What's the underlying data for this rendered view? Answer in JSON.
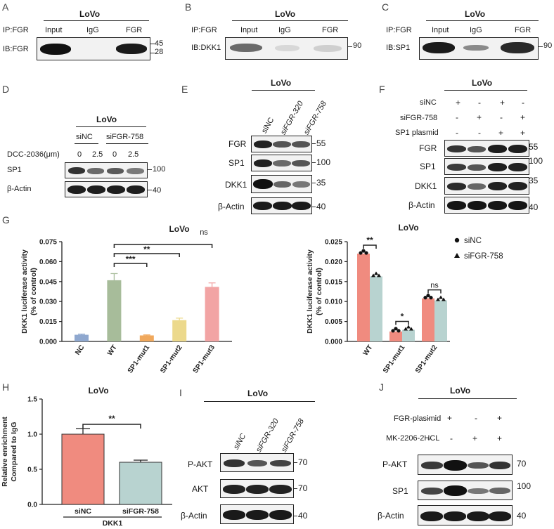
{
  "panels": {
    "A": {
      "letter": "A",
      "cell": "LoVo",
      "ip": "IP:FGR",
      "ib": "IB:FGR",
      "lanes": [
        "Input",
        "IgG",
        "FGR"
      ],
      "markers": [
        "45",
        "28"
      ]
    },
    "B": {
      "letter": "B",
      "cell": "LoVo",
      "ip": "IP:FGR",
      "ib": "IB:DKK1",
      "lanes": [
        "Input",
        "IgG",
        "FGR"
      ],
      "markers": [
        "90"
      ]
    },
    "C": {
      "letter": "C",
      "cell": "LoVo",
      "ip": "IP:FGR",
      "ib": "IB:SP1",
      "lanes": [
        "Input",
        "IgG",
        "FGR"
      ],
      "markers": [
        "90"
      ]
    },
    "D": {
      "letter": "D",
      "cell": "LoVo",
      "groups": [
        "siNC",
        "siFGR-758"
      ],
      "treatment": "DCC-2036(μm)",
      "doses": [
        "0",
        "2.5",
        "0",
        "2.5"
      ],
      "rows": [
        {
          "label": "SP1",
          "marker": "100"
        },
        {
          "label": "β-Actin",
          "marker": "40"
        }
      ]
    },
    "E": {
      "letter": "E",
      "cell": "LoVo",
      "lanes": [
        "siNC",
        "siFGR-320",
        "siFGR-758"
      ],
      "rows": [
        {
          "label": "FGR",
          "marker": "55"
        },
        {
          "label": "SP1",
          "marker": "100"
        },
        {
          "label": "DKK1",
          "marker": "35"
        },
        {
          "label": "β-Actin",
          "marker": "40"
        }
      ]
    },
    "F": {
      "letter": "F",
      "cell": "LoVo",
      "conditions": [
        {
          "label": "siNC",
          "signs": [
            "+",
            "-",
            "+",
            "-"
          ]
        },
        {
          "label": "siFGR-758",
          "signs": [
            "-",
            "+",
            "-",
            "+"
          ]
        },
        {
          "label": "SP1 plasmid",
          "signs": [
            "-",
            "-",
            "+",
            "+"
          ]
        }
      ],
      "rows": [
        {
          "label": "FGR",
          "marker": "55"
        },
        {
          "label": "SP1",
          "marker": "100"
        },
        {
          "label": "DKK1",
          "marker": "35"
        },
        {
          "label": "β-Actin",
          "marker": "40"
        }
      ]
    },
    "G": {
      "letter": "G"
    },
    "H": {
      "letter": "H",
      "sig": "**",
      "group_label": "DKK1"
    },
    "I": {
      "letter": "I",
      "cell": "LoVo",
      "lanes": [
        "siNC",
        "siFGR-320",
        "siFGR-758"
      ],
      "rows": [
        {
          "label": "P-AKT",
          "marker": "70"
        },
        {
          "label": "AKT",
          "marker": "70"
        },
        {
          "label": "β-Actin",
          "marker": "40"
        }
      ]
    },
    "J": {
      "letter": "J",
      "cell": "LoVo",
      "conditions": [
        {
          "label": "FGR-plasimid",
          "signs": [
            "-",
            "+",
            "-",
            "+"
          ]
        },
        {
          "label": "MK-2206-2HCL",
          "signs": [
            "-",
            "-",
            "+",
            "+"
          ]
        }
      ],
      "rows": [
        {
          "label": "P-AKT",
          "marker": "70"
        },
        {
          "label": "SP1",
          "marker": "100"
        },
        {
          "label": "β-Actin",
          "marker": "40"
        }
      ]
    }
  },
  "chart_data": [
    {
      "id": "G-left",
      "type": "bar",
      "title": "LoVo",
      "ylabel": "DKK1 luciferase activity\n(% of control)",
      "categories": [
        "NC",
        "WT",
        "SP1-mut1",
        "SP1-mut2",
        "SP1-mut3"
      ],
      "values": [
        0.005,
        0.046,
        0.0045,
        0.016,
        0.041
      ],
      "errors": [
        0.0005,
        0.005,
        0.0004,
        0.0015,
        0.003
      ],
      "colors": [
        "#8fa8cf",
        "#a7bc9a",
        "#f0a85c",
        "#ecd98c",
        "#f2a4a4"
      ],
      "ylim": [
        0,
        0.075
      ],
      "yticks": [
        "0.000",
        "0.015",
        "0.030",
        "0.045",
        "0.060",
        "0.075"
      ],
      "comparisons": [
        {
          "from": "WT",
          "to": "SP1-mut3",
          "label": "ns"
        },
        {
          "from": "WT",
          "to": "SP1-mut2",
          "label": "**"
        },
        {
          "from": "WT",
          "to": "SP1-mut1",
          "label": "***"
        }
      ]
    },
    {
      "id": "G-right",
      "type": "bar",
      "title": "LoVo",
      "ylabel": "DKK1 luciferase activity\n(% of control)",
      "categories": [
        "WT",
        "SP1-mut1",
        "SP1-mut2"
      ],
      "series": [
        {
          "name": "siNC",
          "values": [
            0.022,
            0.0025,
            0.0108
          ],
          "color": "#f08b7f",
          "marker": "circle"
        },
        {
          "name": "siFGR-758",
          "values": [
            0.0163,
            0.0029,
            0.0103
          ],
          "color": "#b8d3d0",
          "marker": "triangle"
        }
      ],
      "ylim": [
        0,
        0.025
      ],
      "yticks": [
        "0.000",
        "0.005",
        "0.010",
        "0.015",
        "0.020",
        "0.025"
      ],
      "significance": [
        "**",
        "*",
        "ns"
      ],
      "legend": "top-right"
    },
    {
      "id": "H",
      "type": "bar",
      "title": "LoVo",
      "ylabel": "Relative enrichment\nCompared to IgG",
      "categories": [
        "siNC",
        "siFGR-758"
      ],
      "values": [
        1.0,
        0.6
      ],
      "errors": [
        0.08,
        0.03
      ],
      "colors": [
        "#f08b7f",
        "#b8d3d0"
      ],
      "ylim": [
        0,
        1.5
      ],
      "yticks": [
        "0.0",
        "0.5",
        "1.0",
        "1.5"
      ]
    }
  ]
}
